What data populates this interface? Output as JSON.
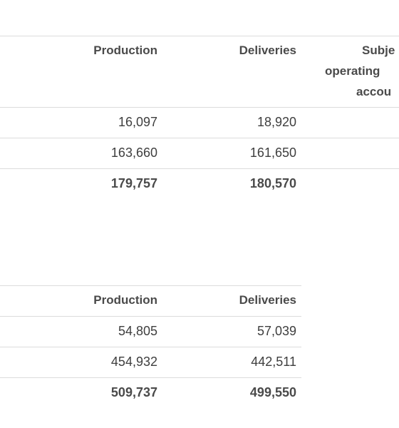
{
  "table1": {
    "header": [
      "Production",
      "Deliveries",
      [
        "Subje",
        "operating",
        "accou"
      ]
    ],
    "rows": [
      [
        "16,097",
        "18,920"
      ],
      [
        "163,660",
        "161,650"
      ],
      [
        "179,757",
        "180,570"
      ]
    ]
  },
  "table2": {
    "header": [
      "Production",
      "Deliveries"
    ],
    "rows": [
      [
        "54,805",
        "57,039"
      ],
      [
        "454,932",
        "442,511"
      ],
      [
        "509,737",
        "499,550"
      ]
    ]
  }
}
